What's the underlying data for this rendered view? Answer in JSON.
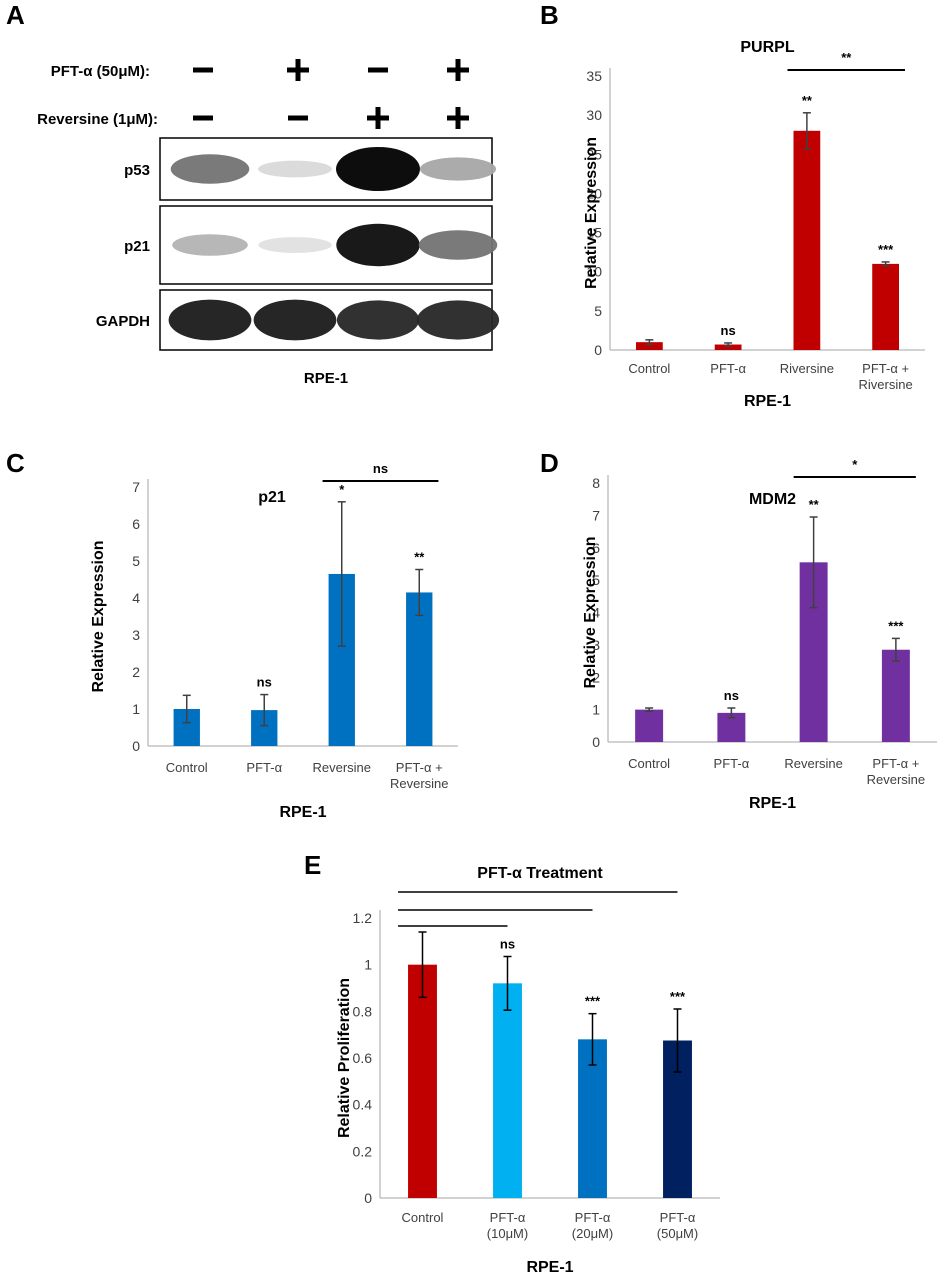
{
  "panels": {
    "A": {
      "label": "A",
      "treatments": [
        {
          "name": "PFT-α (50μM):",
          "signs": [
            "−",
            "+",
            "−",
            "+"
          ]
        },
        {
          "name": "Reversine (1μM):",
          "signs": [
            "−",
            "−",
            "+",
            "+"
          ]
        }
      ],
      "blots": [
        {
          "name": "p53",
          "intensity": [
            0.55,
            0.15,
            1.0,
            0.35
          ]
        },
        {
          "name": "p21",
          "intensity": [
            0.3,
            0.12,
            0.95,
            0.55
          ]
        },
        {
          "name": "GAPDH",
          "intensity": [
            0.9,
            0.9,
            0.85,
            0.85
          ]
        }
      ],
      "cell_line": "RPE-1"
    },
    "B": {
      "label": "B"
    },
    "C": {
      "label": "C"
    },
    "D": {
      "label": "D"
    },
    "E": {
      "label": "E"
    }
  },
  "chart_data": [
    {
      "panel": "B",
      "type": "bar",
      "title": "PURPL",
      "ylabel": "Relative Expression",
      "xlabel": "RPE-1",
      "categories": [
        "Control",
        "PFT-α",
        "Riversine",
        "PFT-α + Riversine"
      ],
      "category_lines": [
        [
          "Control"
        ],
        [
          "PFT-α"
        ],
        [
          "Riversine"
        ],
        [
          "PFT-α +",
          "Riversine"
        ]
      ],
      "values": [
        1,
        0.7,
        28,
        11
      ],
      "errors": [
        0.3,
        0.2,
        2.3,
        0.25
      ],
      "significance": [
        "",
        "ns",
        "**",
        "***"
      ],
      "colors": [
        "#c00000",
        "#c00000",
        "#c00000",
        "#c00000"
      ],
      "ylim": [
        0,
        35
      ],
      "yticks": [
        0,
        5,
        10,
        15,
        20,
        25,
        30,
        35
      ],
      "bracket": {
        "from": 2,
        "to": 3,
        "label": "**"
      },
      "grid": false
    },
    {
      "panel": "C",
      "type": "bar",
      "title": "p21",
      "ylabel": "Relative Expression",
      "xlabel": "RPE-1",
      "categories": [
        "Control",
        "PFT-α",
        "Reversine",
        "PFT-α + Reversine"
      ],
      "category_lines": [
        [
          "Control"
        ],
        [
          "PFT-α"
        ],
        [
          "Reversine"
        ],
        [
          "PFT-α +",
          "Reversine"
        ]
      ],
      "values": [
        1,
        0.97,
        4.65,
        4.15
      ],
      "errors": [
        0.37,
        0.42,
        1.95,
        0.62
      ],
      "significance": [
        "",
        "ns",
        "*",
        "**"
      ],
      "colors": [
        "#0070c0",
        "#0070c0",
        "#0070c0",
        "#0070c0"
      ],
      "ylim": [
        0,
        7
      ],
      "yticks": [
        0,
        1,
        2,
        3,
        4,
        5,
        6,
        7
      ],
      "bracket": {
        "from": 2,
        "to": 3,
        "label": "ns"
      },
      "grid": false
    },
    {
      "panel": "D",
      "type": "bar",
      "title": "MDM2",
      "ylabel": "Relative Expression",
      "xlabel": "RPE-1",
      "categories": [
        "Control",
        "PFT-α",
        "Reversine",
        "PFT-α + Reversine"
      ],
      "category_lines": [
        [
          "Control"
        ],
        [
          "PFT-α"
        ],
        [
          "Reversine"
        ],
        [
          "PFT-α +",
          "Reversine"
        ]
      ],
      "values": [
        1,
        0.9,
        5.55,
        2.85
      ],
      "errors": [
        0.05,
        0.15,
        1.4,
        0.35
      ],
      "significance": [
        "",
        "ns",
        "**",
        "***"
      ],
      "colors": [
        "#7030a0",
        "#7030a0",
        "#7030a0",
        "#7030a0"
      ],
      "ylim": [
        0,
        8
      ],
      "yticks": [
        0,
        1,
        2,
        3,
        4,
        5,
        6,
        7,
        8
      ],
      "bracket": {
        "from": 2,
        "to": 3,
        "label": "*"
      },
      "grid": false
    },
    {
      "panel": "E",
      "type": "bar",
      "title": "PFT-α Treatment",
      "ylabel": "Relative  Proliferation",
      "xlabel": "RPE-1",
      "categories": [
        "Control",
        "PFT-α (10μM)",
        "PFT-α (20μM)",
        "PFT-α (50μM)"
      ],
      "category_lines": [
        [
          "Control"
        ],
        [
          "PFT-α",
          "(10μM)"
        ],
        [
          "PFT-α",
          "(20μM)"
        ],
        [
          "PFT-α",
          "(50μM)"
        ]
      ],
      "values": [
        1.0,
        0.92,
        0.68,
        0.675
      ],
      "errors": [
        0.14,
        0.115,
        0.11,
        0.135
      ],
      "significance": [
        "",
        "ns",
        "***",
        "***"
      ],
      "colors": [
        "#c00000",
        "#00b0f0",
        "#0070c0",
        "#002060"
      ],
      "ylim": [
        0,
        1.2
      ],
      "yticks": [
        0,
        0.2,
        0.4,
        0.6,
        0.8,
        1,
        1.2
      ],
      "brackets_from_control": [
        1,
        2,
        3
      ],
      "grid": false
    }
  ]
}
